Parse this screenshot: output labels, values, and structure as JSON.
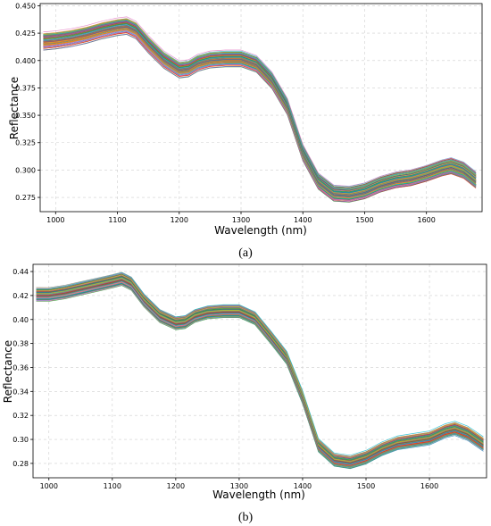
{
  "chart_data": [
    {
      "type": "line",
      "panel_label": "(a)",
      "xlabel": "Wavelength (nm)",
      "ylabel": "Reflectance",
      "xlim": [
        975,
        1690
      ],
      "ylim": [
        0.262,
        0.452
      ],
      "xticks": [
        1000,
        1100,
        1200,
        1300,
        1400,
        1500,
        1600
      ],
      "yticks": [
        0.275,
        0.3,
        0.325,
        0.35,
        0.375,
        0.4,
        0.425,
        0.45
      ],
      "ytick_labels": [
        "0.275",
        "0.300",
        "0.325",
        "0.350",
        "0.375",
        "0.400",
        "0.425",
        "0.450"
      ],
      "grid": true,
      "n_series": 100,
      "spread": 0.013,
      "x": [
        980,
        1000,
        1025,
        1050,
        1075,
        1100,
        1115,
        1130,
        1150,
        1175,
        1200,
        1215,
        1230,
        1250,
        1275,
        1300,
        1325,
        1350,
        1375,
        1400,
        1425,
        1450,
        1475,
        1500,
        1525,
        1550,
        1575,
        1600,
        1625,
        1640,
        1660,
        1680
      ],
      "mean": [
        0.418,
        0.419,
        0.421,
        0.424,
        0.428,
        0.431,
        0.432,
        0.428,
        0.415,
        0.401,
        0.392,
        0.393,
        0.398,
        0.401,
        0.402,
        0.402,
        0.397,
        0.382,
        0.358,
        0.316,
        0.29,
        0.279,
        0.278,
        0.281,
        0.287,
        0.291,
        0.293,
        0.297,
        0.302,
        0.304,
        0.3,
        0.291
      ]
    },
    {
      "type": "line",
      "panel_label": "(b)",
      "xlabel": "Wavelength (nm)",
      "ylabel": "Reflectance",
      "xlim": [
        975,
        1690
      ],
      "ylim": [
        0.268,
        0.446
      ],
      "xticks": [
        1000,
        1100,
        1200,
        1300,
        1400,
        1500,
        1600
      ],
      "yticks": [
        0.28,
        0.3,
        0.32,
        0.34,
        0.36,
        0.38,
        0.4,
        0.42,
        0.44
      ],
      "ytick_labels": [
        "0.28",
        "0.30",
        "0.32",
        "0.34",
        "0.36",
        "0.38",
        "0.40",
        "0.42",
        "0.44"
      ],
      "grid": true,
      "n_series": 100,
      "spread": 0.009,
      "x": [
        980,
        1000,
        1025,
        1050,
        1075,
        1100,
        1115,
        1130,
        1150,
        1175,
        1200,
        1215,
        1230,
        1250,
        1275,
        1300,
        1325,
        1350,
        1375,
        1400,
        1425,
        1450,
        1475,
        1500,
        1525,
        1550,
        1575,
        1600,
        1625,
        1640,
        1660,
        1685
      ],
      "mean": [
        0.421,
        0.421,
        0.423,
        0.426,
        0.429,
        0.432,
        0.434,
        0.43,
        0.416,
        0.403,
        0.397,
        0.398,
        0.403,
        0.406,
        0.407,
        0.407,
        0.401,
        0.385,
        0.368,
        0.335,
        0.295,
        0.283,
        0.281,
        0.285,
        0.292,
        0.297,
        0.299,
        0.301,
        0.307,
        0.309,
        0.305,
        0.296
      ]
    }
  ],
  "colors": {
    "series_cycle": [
      "#1f77b4",
      "#ff7f0e",
      "#2ca02c",
      "#d62728",
      "#9467bd",
      "#8c564b",
      "#e377c2",
      "#7f7f7f",
      "#bcbd22",
      "#17becf"
    ]
  }
}
